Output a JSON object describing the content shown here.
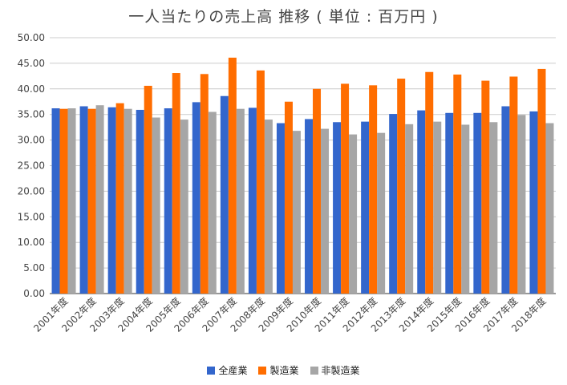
{
  "chart_data": {
    "type": "bar",
    "title": "一人当たりの売上高 推移 ( 単位 : 百万円 )",
    "xlabel": "",
    "ylabel": "",
    "ylim": [
      0,
      50
    ],
    "y_ticks": [
      "0.00",
      "5.00",
      "10.00",
      "15.00",
      "20.00",
      "25.00",
      "30.00",
      "35.00",
      "40.00",
      "45.00",
      "50.00"
    ],
    "grid": true,
    "legend_position": "bottom",
    "categories": [
      "2001年度",
      "2002年度",
      "2003年度",
      "2004年度",
      "2005年度",
      "2006年度",
      "2007年度",
      "2008年度",
      "2009年度",
      "2010年度",
      "2011年度",
      "2012年度",
      "2013年度",
      "2014年度",
      "2015年度",
      "2016年度",
      "2017年度",
      "2018年度"
    ],
    "series": [
      {
        "name": "全産業",
        "color": "#3366cc",
        "values": [
          36.2,
          36.6,
          36.4,
          35.9,
          36.2,
          37.4,
          38.6,
          36.3,
          33.3,
          34.1,
          33.5,
          33.6,
          35.1,
          35.8,
          35.3,
          35.3,
          36.6,
          35.6
        ]
      },
      {
        "name": "製造業",
        "color": "#ff6d00",
        "values": [
          36.1,
          36.1,
          37.2,
          40.6,
          43.1,
          42.9,
          46.1,
          43.6,
          37.5,
          40.0,
          41.0,
          40.7,
          42.0,
          43.3,
          42.8,
          41.6,
          42.4,
          43.9
        ]
      },
      {
        "name": "非製造業",
        "color": "#a6a6a6",
        "values": [
          36.2,
          36.8,
          36.1,
          34.4,
          34.0,
          35.5,
          36.1,
          34.0,
          31.8,
          32.2,
          31.1,
          31.4,
          33.1,
          33.6,
          33.0,
          33.5,
          34.9,
          33.3
        ]
      }
    ]
  }
}
